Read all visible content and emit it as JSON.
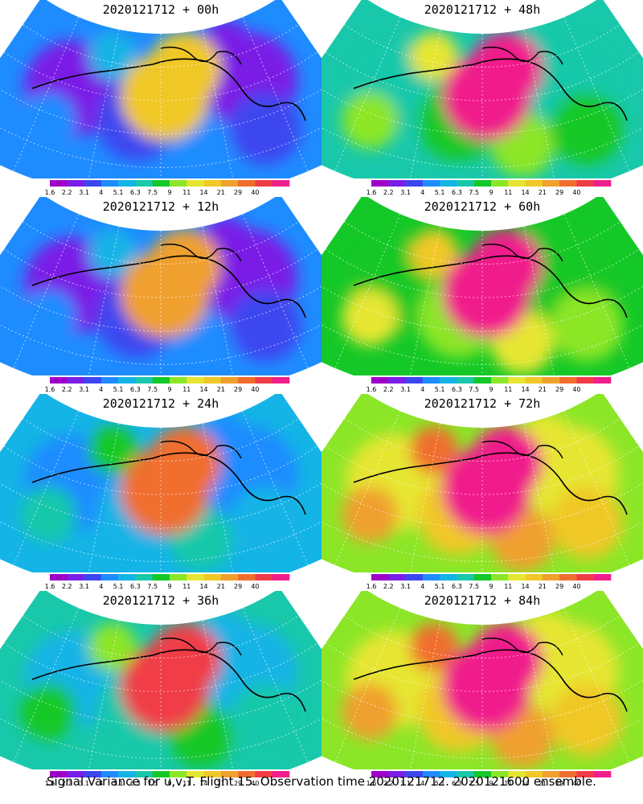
{
  "panels": [
    {
      "title": "2020121712 + 00h",
      "level": 0
    },
    {
      "title": "2020121712 + 48h",
      "level": 4
    },
    {
      "title": "2020121712 + 12h",
      "level": 1
    },
    {
      "title": "2020121712 + 60h",
      "level": 5
    },
    {
      "title": "2020121712 + 24h",
      "level": 2
    },
    {
      "title": "2020121712 + 72h",
      "level": 6
    },
    {
      "title": "2020121712 + 36h",
      "level": 3
    },
    {
      "title": "2020121712 + 84h",
      "level": 7
    }
  ],
  "colorbar": {
    "labels": [
      "1.6",
      "2.2",
      "3.1",
      "4",
      "5.1",
      "6.3",
      "7.5",
      "9",
      "11",
      "14",
      "21",
      "29",
      "40"
    ],
    "colors": [
      "#9f00c8",
      "#7a1ee6",
      "#3c46f0",
      "#1e8cff",
      "#14b4e6",
      "#19c8aa",
      "#14c828",
      "#8ce628",
      "#e6e632",
      "#f0c828",
      "#f0a02d",
      "#f06e2d",
      "#f03c46",
      "#f01e8c"
    ]
  },
  "footer": "Signal Variance for u,v,T. Flight 15. Observation time 2020121712. 2020121600 ensemble."
}
